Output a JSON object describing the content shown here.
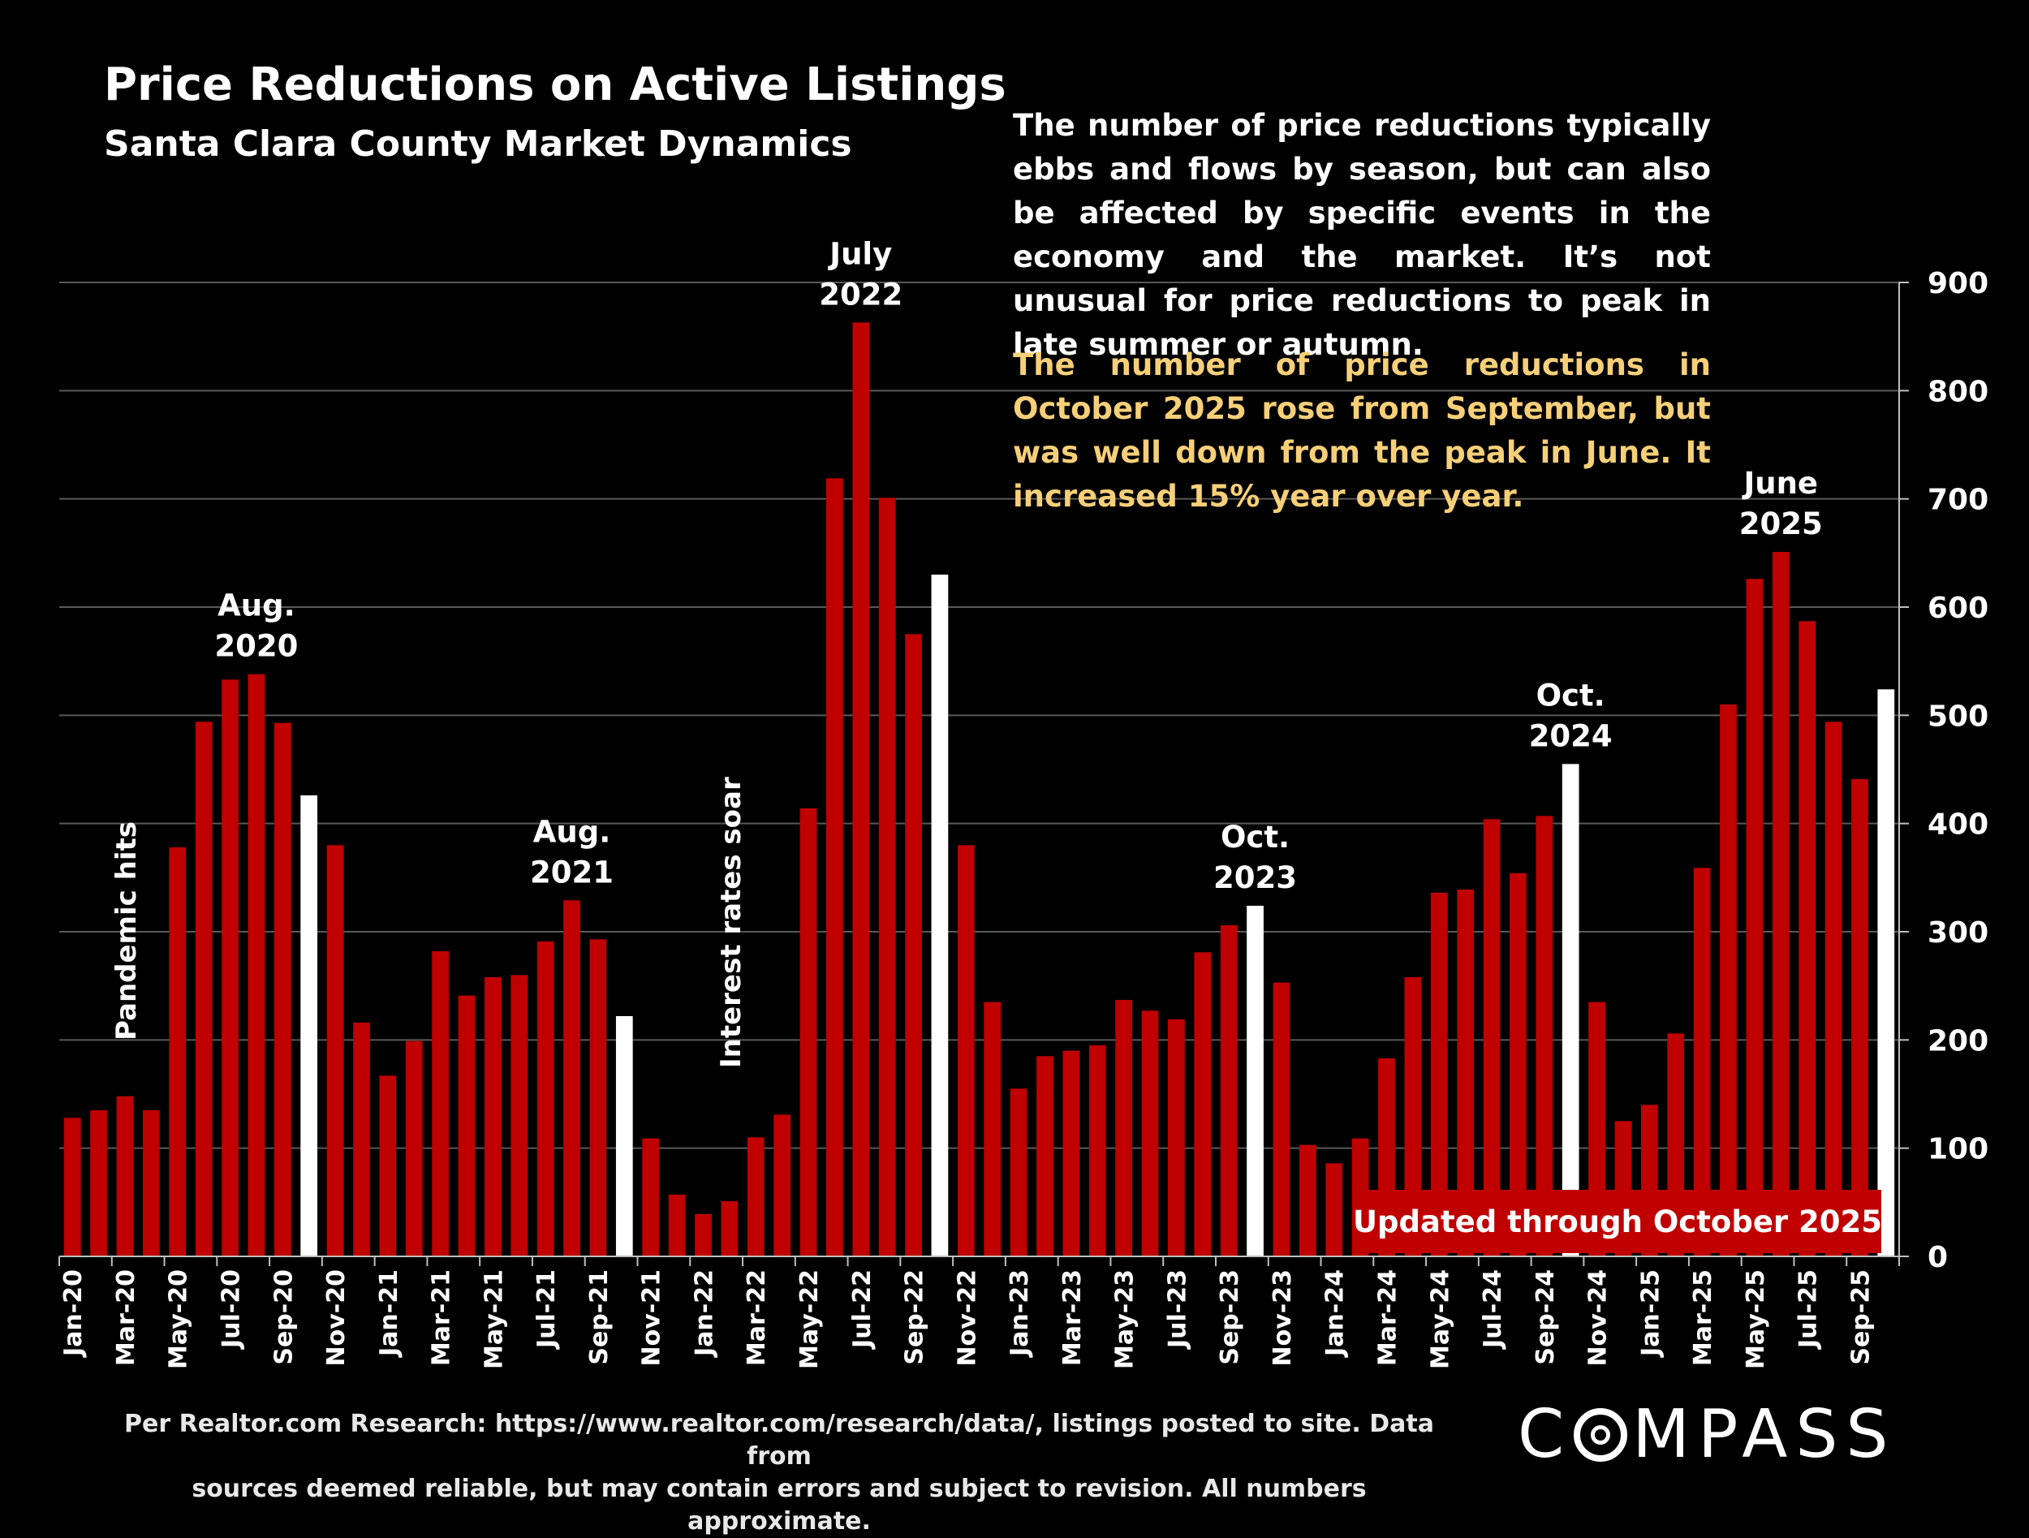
{
  "header": {
    "title": "Price Reductions on Active Listings",
    "subtitle": "Santa Clara County Market Dynamics"
  },
  "description": {
    "paragraph1": "The number of price reductions typically ebbs and flows by season, but can also be affected by specific events in the economy and the market. It’s not unusual for price reductions to peak in late summer or autumn.",
    "paragraph2": "The number of price reductions in October 2025 rose from September, but was well down from the peak in June. It increased 15% year over year."
  },
  "footer": {
    "source_line1": "Per Realtor.com Research:  https://www.realtor.com/research/data/, listings posted to site. Data from",
    "source_line2": "sources deemed reliable, but may contain errors and subject to revision. All numbers approximate.",
    "logo_text": "COMPASS"
  },
  "colors": {
    "background": "#000000",
    "bar_default": "#c00000",
    "bar_highlight": "#ffffff",
    "grid": "#595959",
    "yellow_text": "#f6cf78",
    "badge": "#c00000"
  },
  "chart_data": {
    "type": "bar",
    "title": "Price Reductions on Active Listings",
    "subtitle": "Santa Clara County Market Dynamics",
    "ylim": [
      0,
      900
    ],
    "yticks": [
      0,
      100,
      200,
      300,
      400,
      500,
      600,
      700,
      800,
      900
    ],
    "y_axis_side": "right",
    "grid": true,
    "months": [
      "Jan-20",
      "Feb-20",
      "Mar-20",
      "Apr-20",
      "May-20",
      "Jun-20",
      "Jul-20",
      "Aug-20",
      "Sep-20",
      "Oct-20",
      "Nov-20",
      "Dec-20",
      "Jan-21",
      "Feb-21",
      "Mar-21",
      "Apr-21",
      "May-21",
      "Jun-21",
      "Jul-21",
      "Aug-21",
      "Sep-21",
      "Oct-21",
      "Nov-21",
      "Dec-21",
      "Jan-22",
      "Feb-22",
      "Mar-22",
      "Apr-22",
      "May-22",
      "Jun-22",
      "Jul-22",
      "Aug-22",
      "Sep-22",
      "Oct-22",
      "Nov-22",
      "Dec-22",
      "Jan-23",
      "Feb-23",
      "Mar-23",
      "Apr-23",
      "May-23",
      "Jun-23",
      "Jul-23",
      "Aug-23",
      "Sep-23",
      "Oct-23",
      "Nov-23",
      "Dec-23",
      "Jan-24",
      "Feb-24",
      "Mar-24",
      "Apr-24",
      "May-24",
      "Jun-24",
      "Jul-24",
      "Aug-24",
      "Sep-24",
      "Oct-24",
      "Nov-24",
      "Dec-24",
      "Jan-25",
      "Feb-25",
      "Mar-25",
      "Apr-25",
      "May-25",
      "Jun-25",
      "Jul-25",
      "Aug-25",
      "Sep-25",
      "Oct-25"
    ],
    "values": [
      128,
      135,
      148,
      135,
      378,
      494,
      533,
      538,
      493,
      426,
      380,
      216,
      167,
      199,
      282,
      241,
      258,
      260,
      291,
      329,
      293,
      222,
      109,
      57,
      39,
      51,
      110,
      131,
      414,
      719,
      863,
      701,
      575,
      630,
      380,
      235,
      155,
      185,
      190,
      195,
      237,
      227,
      219,
      281,
      306,
      324,
      253,
      103,
      86,
      109,
      183,
      258,
      336,
      339,
      404,
      354,
      407,
      455,
      235,
      125,
      140,
      206,
      359,
      510,
      626,
      651,
      587,
      494,
      441,
      524
    ],
    "highlight_months": [
      "Oct-20",
      "Oct-21",
      "Oct-22",
      "Oct-23",
      "Oct-24",
      "Oct-25"
    ],
    "tick_labels": [
      "Jan-20",
      "Mar-20",
      "May-20",
      "Jul-20",
      "Sep-20",
      "Nov-20",
      "Jan-21",
      "Mar-21",
      "May-21",
      "Jul-21",
      "Sep-21",
      "Nov-21",
      "Jan-22",
      "Mar-22",
      "May-22",
      "Jul-22",
      "Sep-22",
      "Nov-22",
      "Jan-23",
      "Mar-23",
      "May-23",
      "Jul-23",
      "Sep-23",
      "Nov-23",
      "Jan-24",
      "Mar-24",
      "May-24",
      "Jul-24",
      "Sep-24",
      "Nov-24",
      "Jan-25",
      "Mar-25",
      "May-25",
      "Jul-25",
      "Sep-25"
    ],
    "annotations": [
      {
        "month": "Aug-20",
        "lines": [
          "Aug.",
          "2020"
        ]
      },
      {
        "month": "Aug-21",
        "lines": [
          "Aug.",
          "2021"
        ]
      },
      {
        "month": "Jul-22",
        "lines": [
          "July",
          "2022"
        ]
      },
      {
        "month": "Oct-23",
        "lines": [
          "Oct.",
          "2023"
        ]
      },
      {
        "month": "Oct-24",
        "lines": [
          "Oct.",
          "2024"
        ]
      },
      {
        "month": "Jun-25",
        "lines": [
          "June",
          "2025"
        ]
      }
    ],
    "vertical_annotations": [
      {
        "month": "Mar-20",
        "text": "Pandemic hits"
      },
      {
        "month": "Feb-22",
        "text": "Interest rates soar"
      }
    ],
    "badge": "Updated through October 2025"
  }
}
